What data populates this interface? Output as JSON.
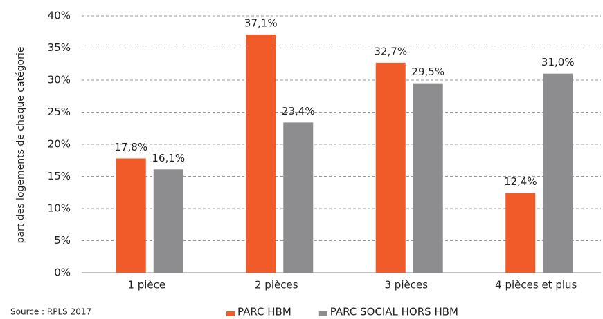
{
  "chart_data": {
    "type": "bar",
    "y_label": "part des logements de chaque catégorie",
    "annotation": "Source : RPLS 2017",
    "categories": [
      "1 pièce",
      "2 pièces",
      "3 pièces",
      "4 pièces et plus"
    ],
    "series": [
      {
        "name": "PARC HBM",
        "color": "#f15a29",
        "values": [
          17.8,
          37.1,
          32.7,
          12.4
        ],
        "value_labels": [
          "17,8%",
          "37,1%",
          "32,7%",
          "12,4%"
        ]
      },
      {
        "name": "PARC SOCIAL HORS HBM",
        "color": "#8d8d8f",
        "values": [
          16.1,
          23.4,
          29.5,
          31.0
        ],
        "value_labels": [
          "16,1%",
          "23,4%",
          "29,5%",
          "31,0%"
        ]
      }
    ],
    "ylim": [
      0,
      40
    ],
    "yticks": [
      {
        "value": 0,
        "label": "0%"
      },
      {
        "value": 5,
        "label": "5%"
      },
      {
        "value": 10,
        "label": "10%"
      },
      {
        "value": 15,
        "label": "15%"
      },
      {
        "value": 20,
        "label": "20%"
      },
      {
        "value": 25,
        "label": "25%"
      },
      {
        "value": 30,
        "label": "30%"
      },
      {
        "value": 35,
        "label": "35%"
      },
      {
        "value": 40,
        "label": "40%"
      }
    ],
    "grid": true,
    "legend": "bottom"
  }
}
